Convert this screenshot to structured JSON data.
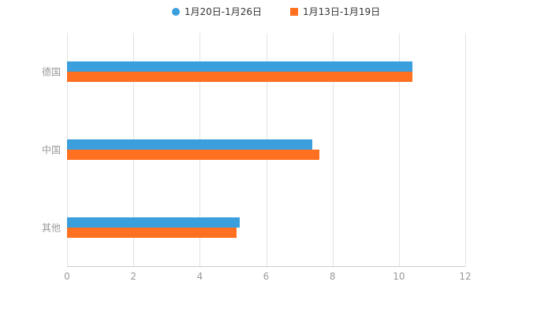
{
  "legend": {
    "items": [
      {
        "label": "1月20日-1月26日",
        "color": "#3a9fdc",
        "marker": "circle"
      },
      {
        "label": "1月13日-1月19日",
        "color": "#ff7020",
        "marker": "square"
      }
    ]
  },
  "chart_data": {
    "type": "bar",
    "orientation": "horizontal",
    "title": "",
    "xlabel": "",
    "ylabel": "",
    "categories": [
      "德国",
      "中国",
      "其他"
    ],
    "series": [
      {
        "name": "1月20日-1月26日",
        "color": "#3a9fdc",
        "values": [
          10.4,
          7.4,
          5.2
        ]
      },
      {
        "name": "1月13日-1月19日",
        "color": "#ff7020",
        "values": [
          10.4,
          7.6,
          5.1
        ]
      }
    ],
    "xlim": [
      0,
      12
    ],
    "xticks": [
      0,
      2,
      4,
      6,
      8,
      10,
      12
    ],
    "grid": true,
    "legend_position": "top"
  }
}
